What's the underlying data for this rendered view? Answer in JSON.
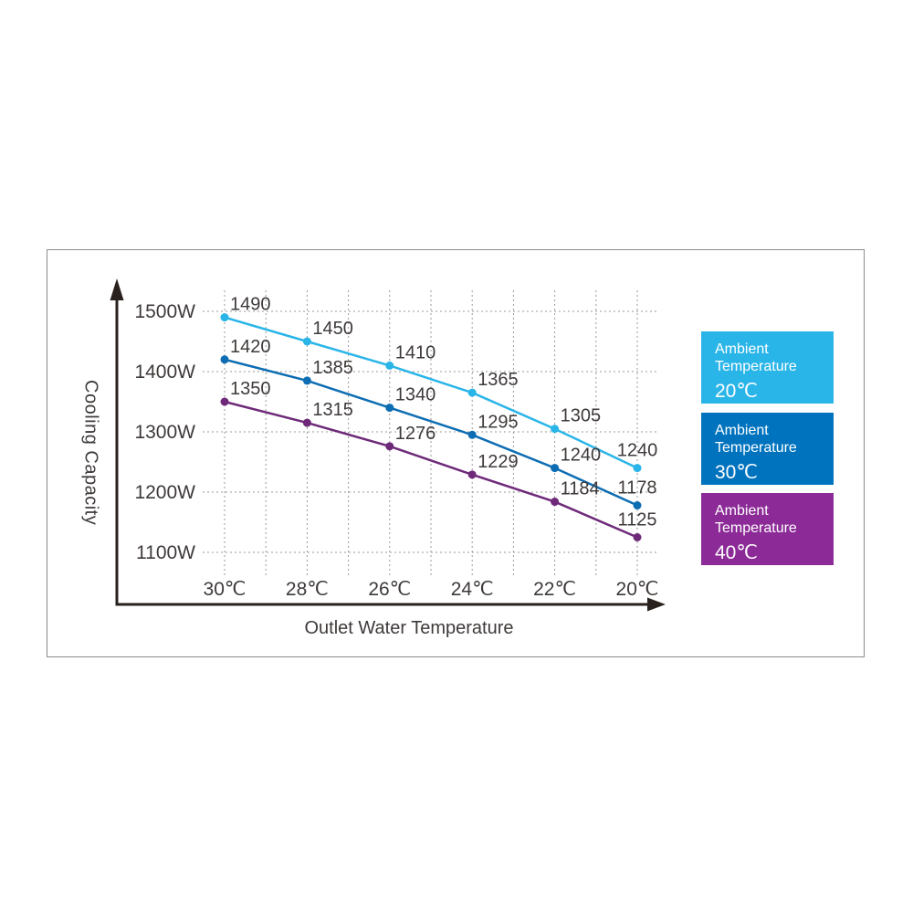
{
  "chart_data": {
    "type": "line",
    "title": "",
    "xlabel": "Outlet Water Temperature",
    "ylabel": "Cooling Capacity",
    "categories": [
      "30℃",
      "28℃",
      "26℃",
      "24℃",
      "22℃",
      "20℃"
    ],
    "y_ticks": [
      "1500W",
      "1400W",
      "1300W",
      "1200W",
      "1100W"
    ],
    "y_tick_values": [
      1500,
      1400,
      1300,
      1200,
      1100
    ],
    "ylim": [
      1100,
      1500
    ],
    "grid": "dashed",
    "legend_position": "right",
    "series": [
      {
        "name": "Ambient Temperature 20℃",
        "legend_lines": [
          "Ambient",
          "Temperature"
        ],
        "legend_temp": "20℃",
        "color": "#2AB5E8",
        "legend_color": "#2AB5E8",
        "values": [
          1490,
          1450,
          1410,
          1365,
          1305,
          1240
        ]
      },
      {
        "name": "Ambient Temperature 30℃",
        "legend_lines": [
          "Ambient",
          "Temperature"
        ],
        "legend_temp": "30℃",
        "color": "#0D6DB3",
        "legend_color": "#0073BE",
        "values": [
          1420,
          1385,
          1340,
          1295,
          1240,
          1178
        ]
      },
      {
        "name": "Ambient Temperature 40℃",
        "legend_lines": [
          "Ambient",
          "Temperature"
        ],
        "legend_temp": "40℃",
        "color": "#6E2A79",
        "legend_color": "#8C2B97",
        "values": [
          1350,
          1315,
          1276,
          1229,
          1184,
          1125
        ]
      }
    ],
    "colors": {
      "text": "#3E3A39",
      "axis": "#29211E",
      "grid": "#9A9A9A",
      "panel_border": "#8C8C8C"
    }
  }
}
